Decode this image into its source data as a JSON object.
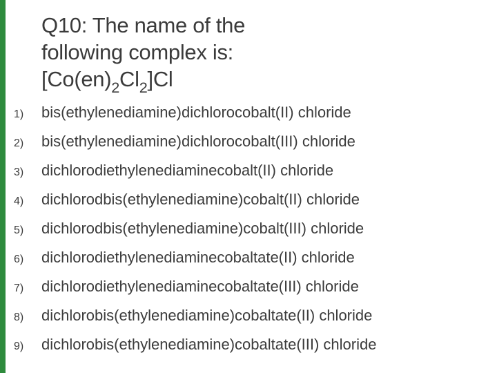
{
  "accent_color": "#2e8b3d",
  "background_color": "#ffffff",
  "text_color": "#3b3b3b",
  "title": {
    "line1": "Q10:  The name of the",
    "line2": "following complex is:",
    "formula_prefix": "[Co(en)",
    "formula_sub1": "2",
    "formula_mid": "Cl",
    "formula_sub2": "2",
    "formula_suffix": "]Cl"
  },
  "options": [
    {
      "num": "1)",
      "text": "bis(ethylenediamine)dichlorocobalt(II) chloride"
    },
    {
      "num": "2)",
      "text": "bis(ethylenediamine)dichlorocobalt(III) chloride"
    },
    {
      "num": "3)",
      "text": "dichlorodiethylenediaminecobalt(II) chloride"
    },
    {
      "num": "4)",
      "text": "dichlorodbis(ethylenediamine)cobalt(II) chloride"
    },
    {
      "num": "5)",
      "text": "dichlorodbis(ethylenediamine)cobalt(III) chloride"
    },
    {
      "num": "6)",
      "text": "dichlorodiethylenediaminecobaltate(II) chloride"
    },
    {
      "num": "7)",
      "text": "dichlorodiethylenediaminecobaltate(III) chloride"
    },
    {
      "num": "8)",
      "text": "dichlorobis(ethylenediamine)cobaltate(II) chloride"
    },
    {
      "num": "9)",
      "text": "dichlorobis(ethylenediamine)cobaltate(III) chloride"
    }
  ]
}
